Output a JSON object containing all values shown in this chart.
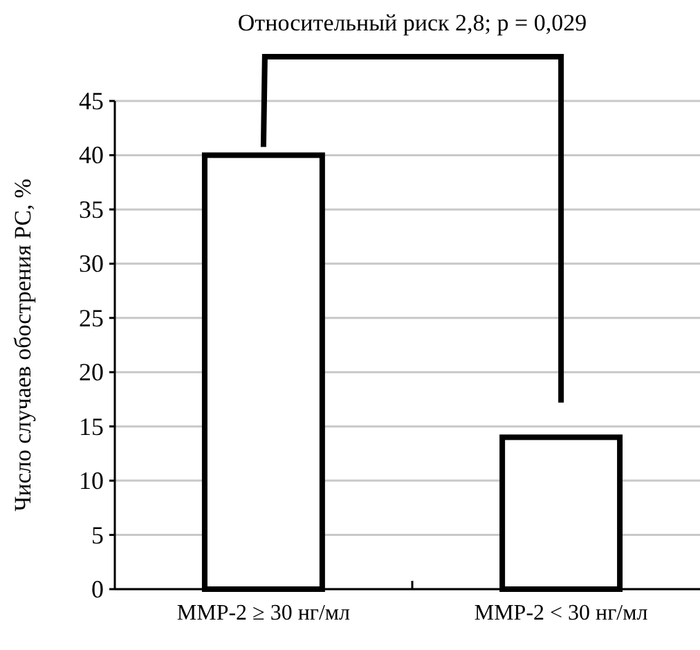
{
  "chart_data": {
    "type": "bar",
    "ylabel": "Число случаев обострения РС, %",
    "categories": [
      "MMP-2 ≥ 30 нг/мл",
      "MMP-2 < 30 нг/мл"
    ],
    "values": [
      40,
      14
    ],
    "color": "#ffffff",
    "ylim": [
      0,
      45
    ],
    "yticks": [
      0,
      5,
      10,
      15,
      20,
      25,
      30,
      35,
      40,
      45
    ],
    "grid": "y",
    "annotations": [
      "Относительный риск 2,8; p = 0,029"
    ]
  }
}
